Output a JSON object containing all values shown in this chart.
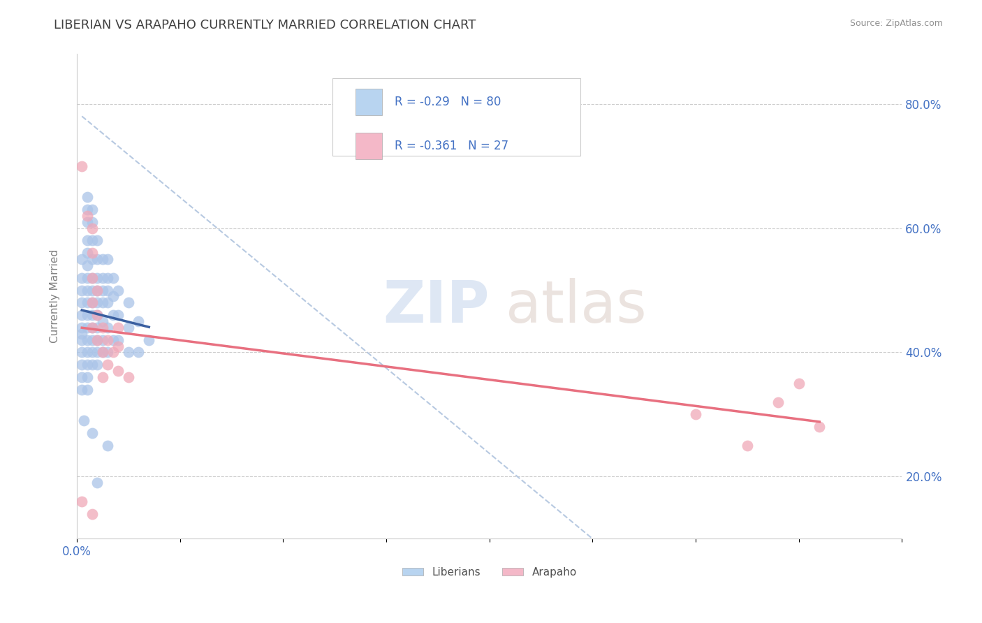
{
  "title": "LIBERIAN VS ARAPAHO CURRENTLY MARRIED CORRELATION CHART",
  "source": "Source: ZipAtlas.com",
  "ylabel": "Currently Married",
  "xlim": [
    0.0,
    0.8
  ],
  "ylim": [
    0.1,
    0.88
  ],
  "xtick_vals": [
    0.0,
    0.1,
    0.2,
    0.3,
    0.4,
    0.5,
    0.6,
    0.7,
    0.8
  ],
  "xtick_labels_show": {
    "0.0": "0.0%",
    "0.80": "80.0%"
  },
  "ytick_vals": [
    0.2,
    0.4,
    0.6,
    0.8
  ],
  "ytick_labels": [
    "20.0%",
    "40.0%",
    "60.0%",
    "80.0%"
  ],
  "grid_ytick_vals": [
    0.2,
    0.4,
    0.6,
    0.8
  ],
  "grid_color": "#cccccc",
  "liberian_color": "#aac4e8",
  "arapaho_color": "#f0a8b8",
  "liberian_line_color": "#3a5fa0",
  "arapaho_line_color": "#e87080",
  "dashed_line_color": "#b0c4de",
  "R_liberian": -0.29,
  "N_liberian": 80,
  "R_arapaho": -0.361,
  "N_arapaho": 27,
  "liberian_scatter": [
    [
      0.005,
      0.55
    ],
    [
      0.005,
      0.52
    ],
    [
      0.005,
      0.5
    ],
    [
      0.005,
      0.48
    ],
    [
      0.005,
      0.46
    ],
    [
      0.005,
      0.44
    ],
    [
      0.005,
      0.43
    ],
    [
      0.005,
      0.42
    ],
    [
      0.005,
      0.4
    ],
    [
      0.005,
      0.38
    ],
    [
      0.005,
      0.36
    ],
    [
      0.005,
      0.34
    ],
    [
      0.01,
      0.65
    ],
    [
      0.01,
      0.63
    ],
    [
      0.01,
      0.61
    ],
    [
      0.01,
      0.58
    ],
    [
      0.01,
      0.56
    ],
    [
      0.01,
      0.54
    ],
    [
      0.01,
      0.52
    ],
    [
      0.01,
      0.5
    ],
    [
      0.01,
      0.48
    ],
    [
      0.01,
      0.46
    ],
    [
      0.01,
      0.44
    ],
    [
      0.01,
      0.42
    ],
    [
      0.01,
      0.4
    ],
    [
      0.01,
      0.38
    ],
    [
      0.01,
      0.36
    ],
    [
      0.01,
      0.34
    ],
    [
      0.015,
      0.63
    ],
    [
      0.015,
      0.61
    ],
    [
      0.015,
      0.58
    ],
    [
      0.015,
      0.55
    ],
    [
      0.015,
      0.52
    ],
    [
      0.015,
      0.5
    ],
    [
      0.015,
      0.48
    ],
    [
      0.015,
      0.46
    ],
    [
      0.015,
      0.44
    ],
    [
      0.015,
      0.42
    ],
    [
      0.015,
      0.4
    ],
    [
      0.015,
      0.38
    ],
    [
      0.02,
      0.58
    ],
    [
      0.02,
      0.55
    ],
    [
      0.02,
      0.52
    ],
    [
      0.02,
      0.5
    ],
    [
      0.02,
      0.48
    ],
    [
      0.02,
      0.46
    ],
    [
      0.02,
      0.44
    ],
    [
      0.02,
      0.42
    ],
    [
      0.02,
      0.4
    ],
    [
      0.02,
      0.38
    ],
    [
      0.025,
      0.55
    ],
    [
      0.025,
      0.52
    ],
    [
      0.025,
      0.5
    ],
    [
      0.025,
      0.48
    ],
    [
      0.025,
      0.45
    ],
    [
      0.025,
      0.42
    ],
    [
      0.025,
      0.4
    ],
    [
      0.03,
      0.55
    ],
    [
      0.03,
      0.52
    ],
    [
      0.03,
      0.5
    ],
    [
      0.03,
      0.48
    ],
    [
      0.03,
      0.44
    ],
    [
      0.03,
      0.4
    ],
    [
      0.035,
      0.52
    ],
    [
      0.035,
      0.49
    ],
    [
      0.035,
      0.46
    ],
    [
      0.035,
      0.42
    ],
    [
      0.04,
      0.5
    ],
    [
      0.04,
      0.46
    ],
    [
      0.04,
      0.42
    ],
    [
      0.05,
      0.48
    ],
    [
      0.05,
      0.44
    ],
    [
      0.05,
      0.4
    ],
    [
      0.06,
      0.45
    ],
    [
      0.06,
      0.4
    ],
    [
      0.07,
      0.42
    ],
    [
      0.007,
      0.29
    ],
    [
      0.015,
      0.27
    ],
    [
      0.02,
      0.19
    ],
    [
      0.03,
      0.25
    ]
  ],
  "arapaho_scatter": [
    [
      0.005,
      0.7
    ],
    [
      0.01,
      0.62
    ],
    [
      0.015,
      0.6
    ],
    [
      0.015,
      0.56
    ],
    [
      0.015,
      0.52
    ],
    [
      0.015,
      0.48
    ],
    [
      0.015,
      0.44
    ],
    [
      0.02,
      0.5
    ],
    [
      0.02,
      0.46
    ],
    [
      0.02,
      0.42
    ],
    [
      0.025,
      0.44
    ],
    [
      0.025,
      0.4
    ],
    [
      0.025,
      0.36
    ],
    [
      0.03,
      0.42
    ],
    [
      0.03,
      0.38
    ],
    [
      0.035,
      0.4
    ],
    [
      0.04,
      0.44
    ],
    [
      0.04,
      0.41
    ],
    [
      0.005,
      0.16
    ],
    [
      0.015,
      0.14
    ],
    [
      0.04,
      0.37
    ],
    [
      0.05,
      0.36
    ],
    [
      0.6,
      0.3
    ],
    [
      0.65,
      0.25
    ],
    [
      0.68,
      0.32
    ],
    [
      0.7,
      0.35
    ],
    [
      0.72,
      0.28
    ]
  ],
  "title_color": "#404040",
  "title_fontsize": 13,
  "axis_label_color": "#808080",
  "tick_label_color": "#4472c4",
  "source_color": "#909090",
  "source_fontsize": 9,
  "legend_box_color_liberian": "#b8d4f0",
  "legend_box_color_arapaho": "#f4b8c8",
  "legend_value_color": "#4472c4",
  "legend_text_color": "#505050",
  "watermark_zip_color": "#c8d8ee",
  "watermark_atlas_color": "#d8c8c0"
}
